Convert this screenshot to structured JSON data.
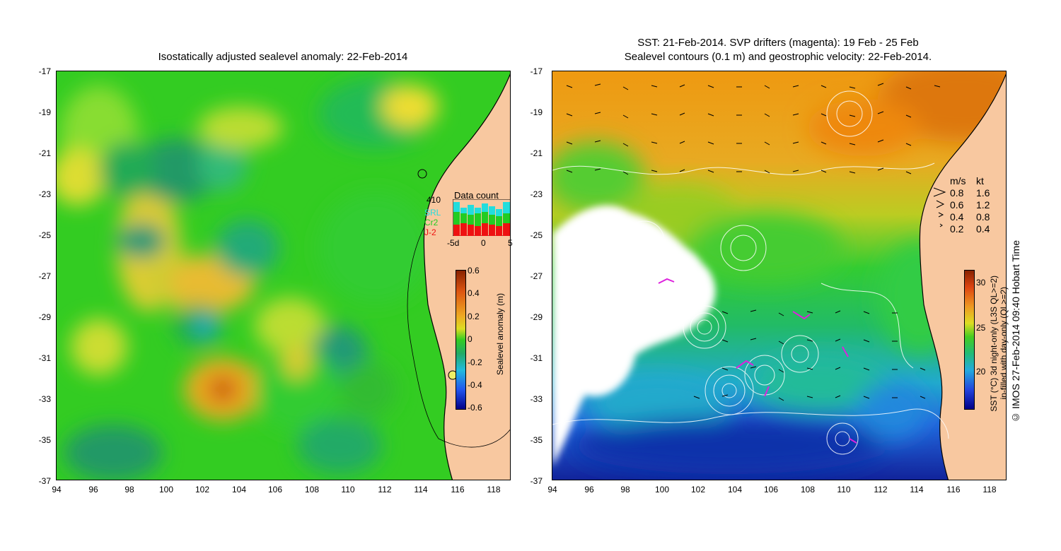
{
  "left_panel": {
    "title": "Isostatically adjusted sealevel anomaly: 22-Feb-2014",
    "x_ticks": [
      "94",
      "96",
      "98",
      "100",
      "102",
      "104",
      "106",
      "108",
      "110",
      "112",
      "114",
      "116",
      "118"
    ],
    "y_ticks": [
      "-17",
      "-19",
      "-21",
      "-23",
      "-25",
      "-27",
      "-29",
      "-31",
      "-33",
      "-35",
      "-37"
    ],
    "colorbar": {
      "label": "Sealevel anomaly (m)",
      "ticks": [
        "0.6",
        "0.4",
        "0.2",
        "0",
        "-0.2",
        "-0.4",
        "-0.6"
      ]
    },
    "data_count": {
      "title": "Data count",
      "total": "410",
      "satellites": [
        {
          "name": "SRL",
          "color": "#22dddd"
        },
        {
          "name": "Cr2",
          "color": "#22cc22"
        },
        {
          "name": "J-2",
          "color": "#ee1111"
        }
      ],
      "x_ticks": [
        "-5d",
        "0",
        "5"
      ]
    }
  },
  "right_panel": {
    "title_line1": "SST: 21-Feb-2014. SVP drifters (magenta): 19 Feb - 25 Feb",
    "title_line2": "Sealevel contours (0.1 m) and geostrophic velocity: 22-Feb-2014.",
    "x_ticks": [
      "94",
      "96",
      "98",
      "100",
      "102",
      "104",
      "106",
      "108",
      "110",
      "112",
      "114",
      "116",
      "118"
    ],
    "y_ticks": [
      "-17",
      "-19",
      "-21",
      "-23",
      "-25",
      "-27",
      "-29",
      "-31",
      "-33",
      "-35",
      "-37"
    ],
    "speed_legend": {
      "header_ms": "m/s",
      "header_kt": "kt",
      "rows": [
        {
          "ms": "0.8",
          "kt": "1.6"
        },
        {
          "ms": "0.6",
          "kt": "1.2"
        },
        {
          "ms": "0.4",
          "kt": "0.8"
        },
        {
          "ms": "0.2",
          "kt": "0.4"
        }
      ]
    },
    "colorbar": {
      "label_line1": "SST (°C) 3d night-only (L3S QL>=2)",
      "label_line2": "in-filled with day-only (QL>=2)",
      "ticks": [
        "30",
        "25",
        "20"
      ]
    },
    "credit": "© IMOS 27-Feb-2014 09:40 Hobart Time"
  }
}
